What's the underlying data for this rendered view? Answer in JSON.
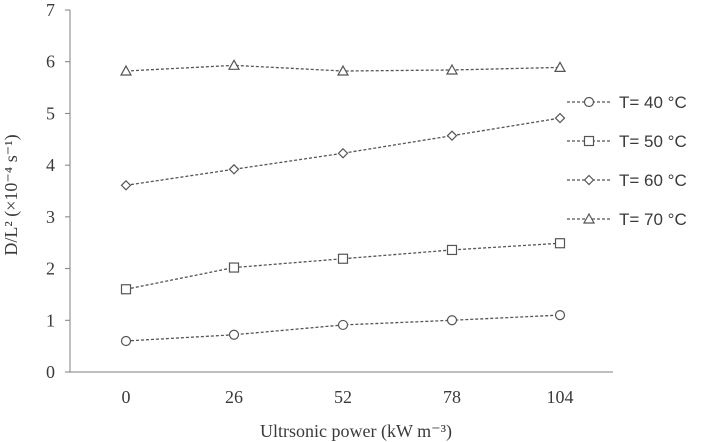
{
  "chart_data": {
    "type": "line",
    "title": "",
    "xlabel": "Ultrsonic power (kW m⁻³)",
    "ylabel": "D/L² (×10⁻⁴ s⁻¹)",
    "categories": [
      "0",
      "26",
      "52",
      "78",
      "104"
    ],
    "y_ticks": [
      "0",
      "1",
      "2",
      "3",
      "4",
      "5",
      "6",
      "7"
    ],
    "ylim": [
      0,
      7
    ],
    "grid": false,
    "legend_position": "right",
    "line_style": "dashed",
    "series": [
      {
        "name": "T= 40 °C",
        "marker": "circle",
        "values": [
          0.6,
          0.72,
          0.91,
          1.0,
          1.1
        ]
      },
      {
        "name": "T= 50 °C",
        "marker": "square",
        "values": [
          1.6,
          2.02,
          2.19,
          2.36,
          2.49
        ]
      },
      {
        "name": "T= 60 °C",
        "marker": "diamond",
        "values": [
          3.61,
          3.92,
          4.23,
          4.57,
          4.91
        ]
      },
      {
        "name": "T= 70 °C",
        "marker": "triangle",
        "values": [
          5.82,
          5.93,
          5.82,
          5.84,
          5.89
        ]
      }
    ],
    "colors": {
      "line": "#555555",
      "marker_stroke": "#555555",
      "marker_fill": "#ffffff",
      "axis": "#7f7f7f",
      "text": "#3a3a3a"
    }
  }
}
